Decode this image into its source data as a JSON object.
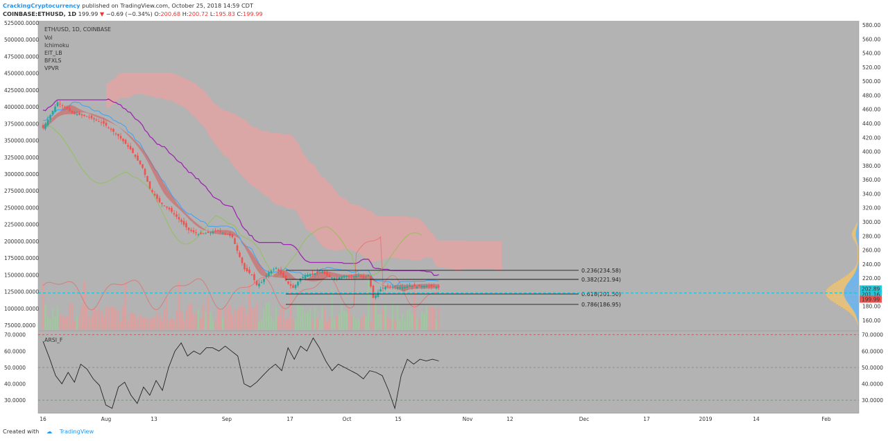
{
  "header": {
    "author": "CrackingCryptocurrency",
    "published_text": "published on TradingView.com, October 25, 2018 14:59 CDT",
    "symbol": "COINBASE:ETHUSD, 1D",
    "last": "199.99",
    "change_arrow": "▼",
    "change": "−0.69 (−0.34%)",
    "o_label": "O:",
    "o_value": "200.68",
    "h_label": "H:",
    "h_value": "200.72",
    "l_label": "L:",
    "l_value": "195.83",
    "c_label": "C:",
    "c_value": "199.99"
  },
  "legend": {
    "title": "ETH/USD, 1D, COINBASE",
    "items": [
      "Vol",
      "Ichimoku",
      "EIT_LB",
      "BFXLS",
      "VPVR"
    ]
  },
  "rsi_label": "ARSI_F",
  "footer": {
    "created_with": "Created with",
    "brand": "TradingView"
  },
  "colors": {
    "up": "#26a69a",
    "down": "#ef5350",
    "kijun": "#9c27b0",
    "tenkan": "#42a5f5",
    "lagging": "#8bc34a",
    "cloud": "#e8a1a1",
    "fib_line": "#000000",
    "price_tag": "#ef5350",
    "level_tag": "#26c6da",
    "background": "#b3b3b3"
  },
  "chart_data": [
    {
      "type": "candlestick",
      "title": "ETH/USD, 1D, COINBASE",
      "x_ticks": [
        "16",
        "Aug",
        "13",
        "Sep",
        "17",
        "Oct",
        "15",
        "Nov",
        "12",
        "Dec",
        "17",
        "2019",
        "14",
        "Feb"
      ],
      "left_axis_ticks": [
        "525000.0000",
        "500000.0000",
        "475000.0000",
        "450000.0000",
        "425000.0000",
        "400000.0000",
        "375000.0000",
        "350000.0000",
        "325000.0000",
        "300000.0000",
        "275000.0000",
        "250000.0000",
        "225000.0000",
        "200000.0000",
        "175000.0000",
        "150000.0000",
        "125000.0000",
        "100000.0000",
        "75000.0000"
      ],
      "right_axis_ticks": [
        "580.00",
        "560.00",
        "540.00",
        "520.00",
        "500.00",
        "480.00",
        "460.00",
        "440.00",
        "420.00",
        "400.00",
        "380.00",
        "360.00",
        "340.00",
        "320.00",
        "300.00",
        "280.00",
        "260.00",
        "240.00",
        "220.00",
        "200.00",
        "180.00",
        "160.00"
      ],
      "ylim": [
        151,
        584
      ],
      "price_path": [
        [
          0,
          434
        ],
        [
          6,
          470
        ],
        [
          12,
          455
        ],
        [
          19,
          449
        ],
        [
          25,
          440
        ],
        [
          31,
          423
        ],
        [
          36,
          404
        ],
        [
          41,
          378
        ],
        [
          44,
          349
        ],
        [
          48,
          330
        ],
        [
          52,
          320
        ],
        [
          56,
          306
        ],
        [
          60,
          291
        ],
        [
          64,
          285
        ],
        [
          68,
          287
        ],
        [
          72,
          290
        ],
        [
          76,
          285
        ],
        [
          78,
          281
        ],
        [
          80,
          262
        ],
        [
          83,
          236
        ],
        [
          86,
          228
        ],
        [
          88,
          214
        ],
        [
          90,
          218
        ],
        [
          93,
          232
        ],
        [
          96,
          238
        ],
        [
          99,
          225
        ],
        [
          101,
          216
        ],
        [
          103,
          210
        ],
        [
          106,
          223
        ],
        [
          108,
          228
        ],
        [
          111,
          230
        ],
        [
          115,
          232
        ],
        [
          118,
          225
        ],
        [
          121,
          224
        ],
        [
          124,
          227
        ],
        [
          127,
          226
        ],
        [
          130,
          227
        ],
        [
          132,
          224
        ],
        [
          134,
          228
        ],
        [
          136,
          196
        ],
        [
          139,
          208
        ],
        [
          142,
          213
        ],
        [
          145,
          211
        ],
        [
          148,
          211
        ],
        [
          151,
          213
        ],
        [
          154,
          212
        ],
        [
          157,
          213
        ],
        [
          160,
          212
        ],
        [
          163,
          211
        ]
      ],
      "fib_levels": [
        {
          "label": "0.236(234.58)",
          "value": 234.58
        },
        {
          "label": "0.382(221.94)",
          "value": 221.94
        },
        {
          "label": "0.618(201.50)",
          "value": 201.5
        },
        {
          "label": "0.786(186.95)",
          "value": 186.95
        }
      ],
      "price_tags": [
        {
          "label": "202.89",
          "value": 202.89,
          "kind": "level"
        },
        {
          "label": "201.16",
          "value": 201.16,
          "kind": "level"
        },
        {
          "label": "199.99",
          "value": 199.99,
          "kind": "price"
        }
      ]
    },
    {
      "type": "line",
      "title": "ARSI_F",
      "left_axis_ticks": [
        "70.0000",
        "60.0000",
        "50.0000",
        "40.0000",
        "30.0000"
      ],
      "right_axis_ticks": [
        "70.0000",
        "60.0000",
        "50.0000",
        "40.0000",
        "30.0000"
      ],
      "ylim": [
        22,
        72
      ],
      "levels": [
        70,
        50,
        30
      ],
      "values": [
        66,
        56,
        45,
        40,
        47,
        41,
        52,
        49,
        43,
        39,
        27,
        25,
        38,
        41,
        33,
        28,
        38,
        33,
        42,
        36,
        50,
        60,
        65,
        57,
        60,
        58,
        62,
        62,
        60,
        63,
        60,
        57,
        40,
        38,
        41,
        45,
        49,
        52,
        48,
        62,
        55,
        63,
        60,
        68,
        62,
        54,
        48,
        52,
        50,
        48,
        46,
        43,
        48,
        47,
        45,
        36,
        25,
        45,
        55,
        52,
        55,
        54,
        55,
        54
      ]
    }
  ]
}
